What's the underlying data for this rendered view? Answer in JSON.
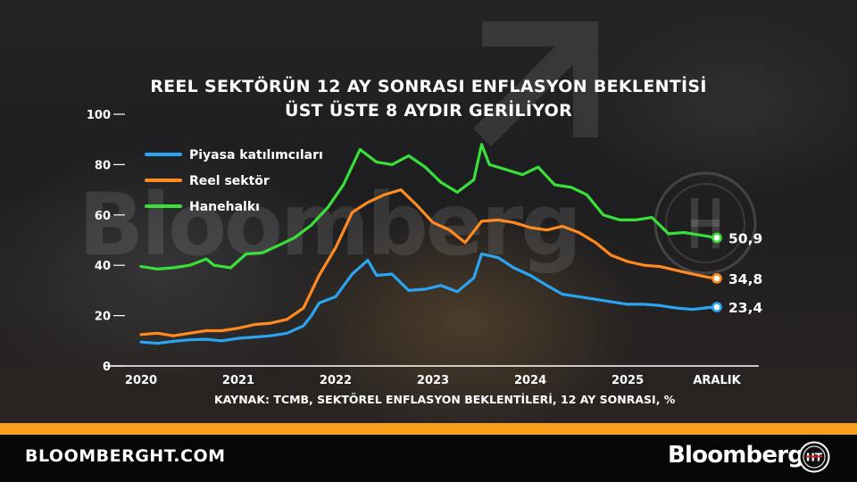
{
  "header": {
    "title_line1": "REEL SEKTÖRÜN 12 AY SONRASI ENFLASYON BEKLENTİSİ",
    "title_line2": "ÜST ÜSTE 8 AYDIR GERİLİYOR"
  },
  "source": "KAYNAK: TCMB, SEKTÖREL ENFLASYON BEKLENTİLERİ, 12 AY SONRASI, %",
  "footer": {
    "site": "BLOOMBERGHT.COM",
    "brand": "Bloomberg",
    "watermark": "Bloomberg",
    "logo_text": "HT"
  },
  "colors": {
    "piyasa": "#2aa5f2",
    "reel": "#ff8a1f",
    "hane": "#3ae03a",
    "accent": "#f7a01c"
  },
  "chart_data": {
    "type": "line",
    "title": "REEL SEKTÖRÜN 12 AY SONRASI ENFLASYON BEKLENTİSİ ÜST ÜSTE 8 AYDIR GERİLİYOR",
    "ylim": [
      0,
      100
    ],
    "yticks": [
      0,
      20,
      40,
      60,
      80,
      100
    ],
    "xlim": [
      2020,
      2025.917
    ],
    "xticks": [
      {
        "label": "2020",
        "x": 2020
      },
      {
        "label": "2021",
        "x": 2021
      },
      {
        "label": "2022",
        "x": 2022
      },
      {
        "label": "2023",
        "x": 2023
      },
      {
        "label": "2024",
        "x": 2024
      },
      {
        "label": "2025",
        "x": 2025
      },
      {
        "label": "ARALIK",
        "x": 2025.917
      }
    ],
    "legend_position": "top-left",
    "grid": false,
    "series": [
      {
        "name": "Piyasa katılımcıları",
        "key": "piyasa",
        "last_label": "23,4",
        "points": [
          [
            2020.0,
            9.5
          ],
          [
            2020.17,
            9.0
          ],
          [
            2020.33,
            9.8
          ],
          [
            2020.5,
            10.4
          ],
          [
            2020.67,
            10.6
          ],
          [
            2020.83,
            10.0
          ],
          [
            2021.0,
            11.0
          ],
          [
            2021.17,
            11.5
          ],
          [
            2021.33,
            12.0
          ],
          [
            2021.5,
            13.0
          ],
          [
            2021.67,
            16.0
          ],
          [
            2021.75,
            20.0
          ],
          [
            2021.83,
            25.0
          ],
          [
            2022.0,
            27.5
          ],
          [
            2022.17,
            36.5
          ],
          [
            2022.33,
            42.0
          ],
          [
            2022.42,
            36.0
          ],
          [
            2022.58,
            36.5
          ],
          [
            2022.75,
            30.0
          ],
          [
            2022.92,
            30.5
          ],
          [
            2023.08,
            32.0
          ],
          [
            2023.25,
            29.5
          ],
          [
            2023.42,
            35.0
          ],
          [
            2023.5,
            44.5
          ],
          [
            2023.67,
            43.0
          ],
          [
            2023.83,
            39.0
          ],
          [
            2024.0,
            36.0
          ],
          [
            2024.17,
            32.0
          ],
          [
            2024.33,
            28.5
          ],
          [
            2024.5,
            27.5
          ],
          [
            2024.67,
            26.5
          ],
          [
            2024.83,
            25.5
          ],
          [
            2025.0,
            24.5
          ],
          [
            2025.17,
            24.5
          ],
          [
            2025.33,
            24.0
          ],
          [
            2025.5,
            23.0
          ],
          [
            2025.67,
            22.5
          ],
          [
            2025.83,
            23.2
          ],
          [
            2025.917,
            23.4
          ]
        ]
      },
      {
        "name": "Reel sektör",
        "key": "reel",
        "last_label": "34,8",
        "points": [
          [
            2020.0,
            12.5
          ],
          [
            2020.17,
            13.0
          ],
          [
            2020.33,
            12.0
          ],
          [
            2020.5,
            13.0
          ],
          [
            2020.67,
            14.0
          ],
          [
            2020.83,
            14.0
          ],
          [
            2021.0,
            15.0
          ],
          [
            2021.17,
            16.5
          ],
          [
            2021.33,
            17.0
          ],
          [
            2021.5,
            18.5
          ],
          [
            2021.67,
            23.0
          ],
          [
            2021.83,
            36.0
          ],
          [
            2022.0,
            47.0
          ],
          [
            2022.17,
            61.0
          ],
          [
            2022.33,
            65.0
          ],
          [
            2022.5,
            68.0
          ],
          [
            2022.67,
            70.0
          ],
          [
            2022.83,
            64.0
          ],
          [
            2023.0,
            57.0
          ],
          [
            2023.17,
            54.0
          ],
          [
            2023.33,
            49.0
          ],
          [
            2023.5,
            57.5
          ],
          [
            2023.67,
            58.0
          ],
          [
            2023.83,
            57.0
          ],
          [
            2024.0,
            55.0
          ],
          [
            2024.17,
            54.0
          ],
          [
            2024.33,
            55.5
          ],
          [
            2024.5,
            53.0
          ],
          [
            2024.67,
            49.0
          ],
          [
            2024.83,
            44.0
          ],
          [
            2025.0,
            41.5
          ],
          [
            2025.17,
            40.0
          ],
          [
            2025.33,
            39.5
          ],
          [
            2025.5,
            38.0
          ],
          [
            2025.67,
            36.5
          ],
          [
            2025.83,
            35.2
          ],
          [
            2025.917,
            34.8
          ]
        ]
      },
      {
        "name": "Hanehalkı",
        "key": "hane",
        "last_label": "50,9",
        "points": [
          [
            2020.0,
            39.5
          ],
          [
            2020.17,
            38.5
          ],
          [
            2020.33,
            39.0
          ],
          [
            2020.5,
            40.0
          ],
          [
            2020.67,
            42.5
          ],
          [
            2020.75,
            40.0
          ],
          [
            2020.92,
            39.0
          ],
          [
            2021.08,
            44.5
          ],
          [
            2021.25,
            45.0
          ],
          [
            2021.42,
            48.0
          ],
          [
            2021.58,
            51.0
          ],
          [
            2021.75,
            56.0
          ],
          [
            2021.92,
            63.0
          ],
          [
            2022.08,
            72.0
          ],
          [
            2022.25,
            86.0
          ],
          [
            2022.42,
            81.0
          ],
          [
            2022.58,
            80.0
          ],
          [
            2022.75,
            83.5
          ],
          [
            2022.92,
            79.0
          ],
          [
            2023.08,
            73.0
          ],
          [
            2023.25,
            69.0
          ],
          [
            2023.42,
            74.0
          ],
          [
            2023.5,
            88.0
          ],
          [
            2023.58,
            80.0
          ],
          [
            2023.75,
            78.0
          ],
          [
            2023.92,
            76.0
          ],
          [
            2024.08,
            79.0
          ],
          [
            2024.25,
            72.0
          ],
          [
            2024.42,
            71.0
          ],
          [
            2024.58,
            68.0
          ],
          [
            2024.75,
            60.0
          ],
          [
            2024.92,
            58.0
          ],
          [
            2025.08,
            58.0
          ],
          [
            2025.25,
            59.0
          ],
          [
            2025.42,
            52.5
          ],
          [
            2025.58,
            53.0
          ],
          [
            2025.75,
            52.0
          ],
          [
            2025.917,
            50.9
          ]
        ]
      }
    ]
  }
}
